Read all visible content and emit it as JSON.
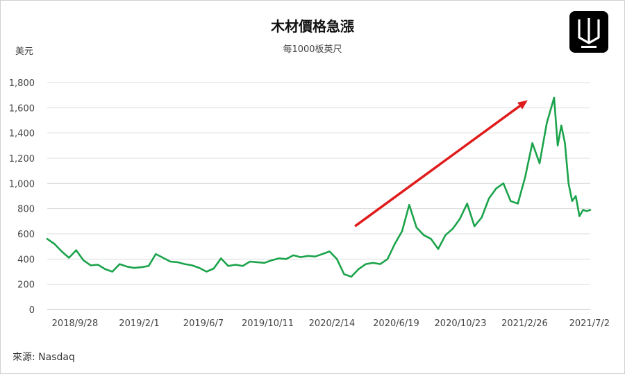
{
  "chart_data": {
    "type": "line",
    "title": "木材價格急漲",
    "subtitle": "每1000板英尺",
    "ylabel": "美元",
    "ylim": [
      0,
      1800
    ],
    "yticks": [
      0,
      200,
      400,
      600,
      800,
      1000,
      1200,
      1400,
      1600,
      1800
    ],
    "ytick_labels": [
      "0",
      "200",
      "400",
      "600",
      "800",
      "1,000",
      "1,200",
      "1,400",
      "1,600",
      "1,800"
    ],
    "xtick_labels": [
      "2018/9/28",
      "2019/2/1",
      "2019/6/7",
      "2019/10/11",
      "2020/2/14",
      "2020/6/19",
      "2020/10/23",
      "2021/2/26",
      "2021/7/2"
    ],
    "grid": true,
    "series": [
      {
        "color": "#1aa34a",
        "x": [
          "2018/8/24",
          "2018/9/7",
          "2018/9/21",
          "2018/10/5",
          "2018/10/19",
          "2018/11/2",
          "2018/11/16",
          "2018/11/30",
          "2018/12/14",
          "2018/12/28",
          "2019/1/11",
          "2019/1/25",
          "2019/2/8",
          "2019/2/22",
          "2019/3/8",
          "2019/3/22",
          "2019/4/5",
          "2019/4/19",
          "2019/5/3",
          "2019/5/17",
          "2019/5/31",
          "2019/6/14",
          "2019/6/28",
          "2019/7/12",
          "2019/7/26",
          "2019/8/9",
          "2019/8/23",
          "2019/9/6",
          "2019/9/20",
          "2019/10/4",
          "2019/10/18",
          "2019/11/1",
          "2019/11/15",
          "2019/11/29",
          "2019/12/13",
          "2019/12/27",
          "2020/1/10",
          "2020/1/24",
          "2020/2/7",
          "2020/2/21",
          "2020/3/6",
          "2020/3/20",
          "2020/4/3",
          "2020/4/17",
          "2020/5/1",
          "2020/5/15",
          "2020/5/29",
          "2020/6/12",
          "2020/6/26",
          "2020/7/10",
          "2020/7/24",
          "2020/8/7",
          "2020/8/21",
          "2020/9/4",
          "2020/9/18",
          "2020/10/2",
          "2020/10/16",
          "2020/10/30",
          "2020/11/13",
          "2020/11/27",
          "2020/12/11",
          "2020/12/25",
          "2021/1/8",
          "2021/1/22",
          "2021/2/5",
          "2021/2/19",
          "2021/3/5",
          "2021/3/19",
          "2021/4/2",
          "2021/4/16",
          "2021/4/30",
          "2021/5/7",
          "2021/5/14",
          "2021/5/21",
          "2021/5/28",
          "2021/6/4",
          "2021/6/11",
          "2021/6/18",
          "2021/6/25",
          "2021/7/2",
          "2021/7/9"
        ],
        "values": [
          560,
          520,
          460,
          410,
          470,
          390,
          350,
          355,
          320,
          300,
          360,
          340,
          330,
          335,
          345,
          440,
          410,
          380,
          375,
          360,
          350,
          330,
          300,
          325,
          405,
          345,
          355,
          345,
          380,
          375,
          370,
          390,
          405,
          400,
          430,
          415,
          425,
          420,
          440,
          460,
          400,
          280,
          260,
          320,
          360,
          370,
          360,
          400,
          520,
          620,
          830,
          650,
          590,
          560,
          480,
          590,
          640,
          720,
          840,
          660,
          730,
          880,
          960,
          1000,
          860,
          840,
          1050,
          1320,
          1160,
          1480,
          1680,
          1300,
          1460,
          1320,
          1000,
          860,
          900,
          740,
          790,
          780,
          790
        ]
      }
    ],
    "annotations": [
      {
        "type": "arrow",
        "color": "#e01b1b",
        "from": [
          "2020/4/10",
          660
        ],
        "to": [
          "2021/3/10",
          1660
        ]
      }
    ]
  },
  "source": "來源: Nasdaq",
  "logo_icon": "w-logo-icon"
}
